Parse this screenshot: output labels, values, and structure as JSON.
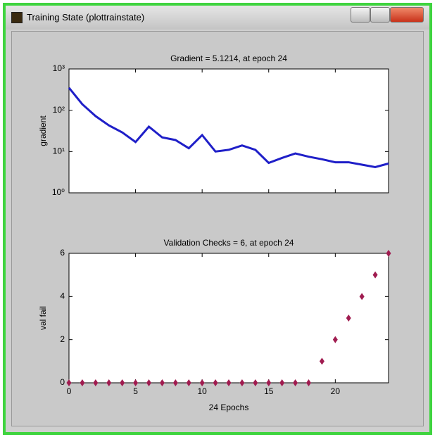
{
  "window": {
    "title": "Training State (plottrainstate)"
  },
  "chart_data": [
    {
      "type": "line",
      "title": "Gradient = 5.1214, at epoch 24",
      "y_label": "gradient",
      "yscale": "log",
      "x": [
        0,
        1,
        2,
        3,
        4,
        5,
        6,
        7,
        8,
        9,
        10,
        11,
        12,
        13,
        14,
        15,
        16,
        17,
        18,
        19,
        20,
        21,
        22,
        23,
        24
      ],
      "values": [
        350,
        140,
        72,
        43,
        29,
        17,
        40,
        22,
        19,
        12,
        25,
        10,
        11,
        14,
        11,
        5.3,
        7,
        9,
        7.5,
        6.5,
        5.5,
        5.5,
        4.8,
        4.2,
        5.1214
      ],
      "color": "#1f1fc8",
      "xlim": [
        0,
        24
      ],
      "ylim": [
        1,
        1000
      ],
      "xticks": [
        0,
        5,
        10,
        15,
        20
      ],
      "show_xtick_labels": false,
      "yticks": [
        {
          "value": 1,
          "label": "10⁰"
        },
        {
          "value": 10,
          "label": "10¹"
        },
        {
          "value": 100,
          "label": "10²"
        },
        {
          "value": 1000,
          "label": "10³"
        }
      ]
    },
    {
      "type": "scatter",
      "title": "Validation Checks = 6, at epoch 24",
      "x_label": "24 Epochs",
      "y_label": "val fail",
      "x": [
        0,
        1,
        2,
        3,
        4,
        5,
        6,
        7,
        8,
        9,
        10,
        11,
        12,
        13,
        14,
        15,
        16,
        17,
        18,
        19,
        20,
        21,
        22,
        23,
        24
      ],
      "values": [
        0,
        0,
        0,
        0,
        0,
        0,
        0,
        0,
        0,
        0,
        0,
        0,
        0,
        0,
        0,
        0,
        0,
        0,
        0,
        1,
        2,
        3,
        4,
        5,
        6
      ],
      "color": "#a01c50",
      "marker": "diamond",
      "xlim": [
        0,
        24
      ],
      "ylim": [
        0,
        6
      ],
      "xticks": [
        0,
        5,
        10,
        15,
        20
      ],
      "show_xtick_labels": true,
      "yticks": [
        0,
        2,
        4,
        6
      ]
    }
  ]
}
